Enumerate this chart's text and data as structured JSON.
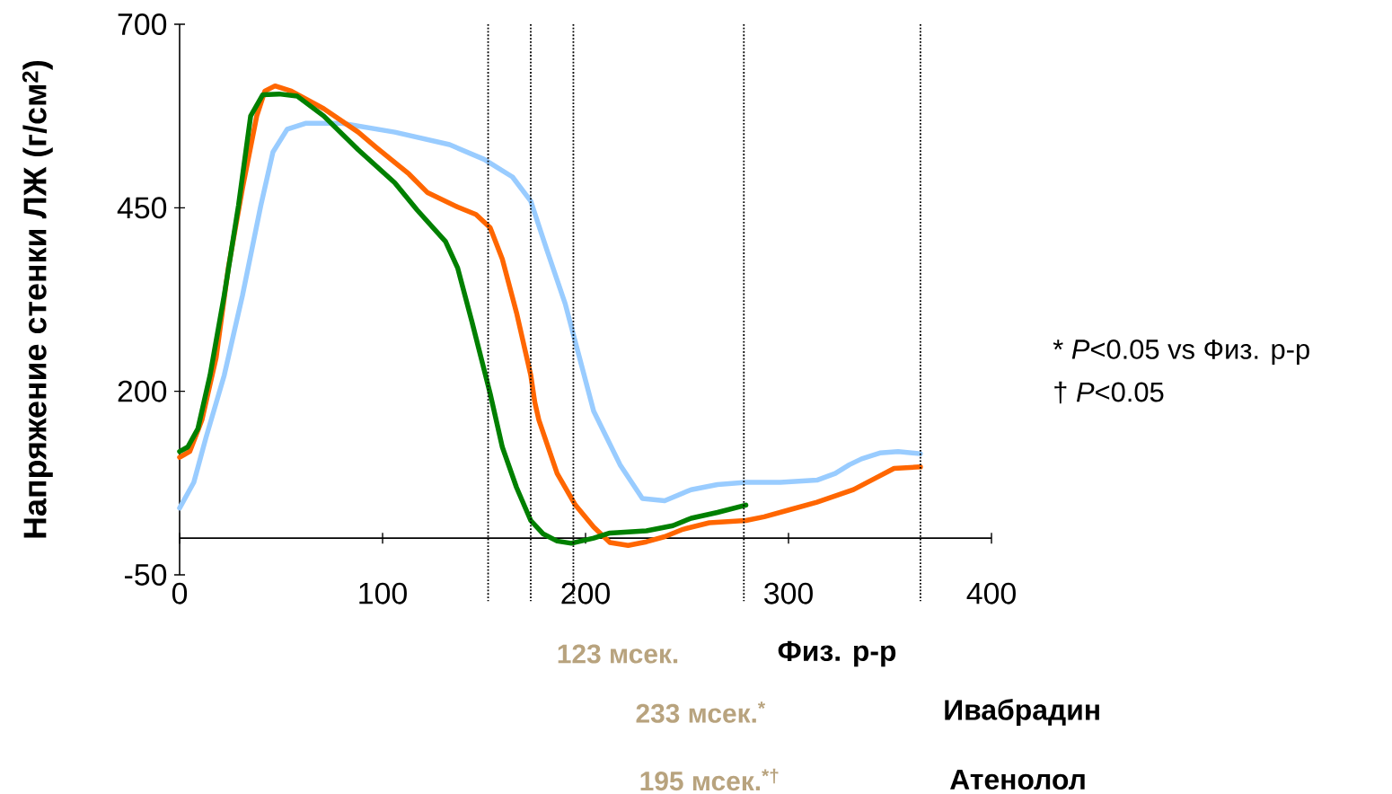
{
  "chart_data": {
    "type": "line",
    "ylabel": "Напряжение стенки ЛЖ (г/см$^{2}$)",
    "xlim": [
      0,
      400
    ],
    "xticks": [
      0,
      100,
      200,
      300,
      400
    ],
    "ylim": [
      -50,
      700
    ],
    "yticks": [
      -50,
      200,
      450,
      700
    ],
    "marker": "none",
    "line_style": "solid",
    "series": [
      {
        "color": "#99ccff",
        "x": [
          0,
          7,
          13,
          22,
          31,
          40,
          46,
          53,
          62,
          80,
          106,
          133,
          150,
          164,
          173,
          181,
          190,
          197,
          204,
          217,
          228,
          239,
          252,
          265,
          279,
          296,
          314,
          323,
          330,
          336,
          345,
          354,
          365
        ],
        "values": [
          41,
          76,
          137,
          222,
          331,
          453,
          526,
          557,
          565,
          565,
          553,
          536,
          516,
          492,
          459,
          392,
          319,
          246,
          173,
          100,
          54,
          51,
          66,
          73,
          76,
          76,
          79,
          88,
          100,
          108,
          116,
          118,
          115
        ]
      },
      {
        "color": "#ff6600",
        "x": [
          0,
          5,
          11,
          18,
          24,
          31,
          38,
          42,
          47,
          55,
          71,
          88,
          97,
          113,
          122,
          137,
          146,
          153,
          159,
          166,
          173,
          175,
          177,
          186,
          195,
          204,
          212,
          221,
          230,
          239,
          248,
          261,
          279,
          288,
          301,
          314,
          332,
          343,
          352,
          365
        ],
        "values": [
          110,
          118,
          161,
          246,
          368,
          477,
          575,
          609,
          616,
          609,
          585,
          553,
          532,
          496,
          471,
          451,
          441,
          423,
          380,
          307,
          222,
          185,
          161,
          88,
          45,
          15,
          -6,
          -10,
          -5,
          2,
          12,
          21,
          24,
          29,
          39,
          49,
          66,
          82,
          95,
          97
        ]
      },
      {
        "color": "#008000",
        "x": [
          0,
          4,
          9,
          15,
          22,
          29,
          35,
          41,
          49,
          58,
          71,
          88,
          106,
          117,
          131,
          137,
          144,
          153,
          159,
          166,
          173,
          179,
          186,
          193,
          204,
          212,
          230,
          243,
          252,
          265,
          279
        ],
        "values": [
          118,
          124,
          149,
          222,
          331,
          453,
          575,
          604,
          605,
          602,
          575,
          529,
          484,
          447,
          404,
          368,
          295,
          197,
          124,
          69,
          24,
          6,
          -4,
          -7,
          0,
          7,
          10,
          17,
          27,
          35,
          45
        ]
      }
    ],
    "ref_lines": [
      {
        "axis": "x",
        "value": 152,
        "line_style": "dotted"
      },
      {
        "axis": "x",
        "value": 173,
        "line_style": "dotted"
      },
      {
        "axis": "x",
        "value": 194,
        "line_style": "dotted"
      },
      {
        "axis": "x",
        "value": 278,
        "line_style": "dotted"
      },
      {
        "axis": "x",
        "value": 365,
        "line_style": "dotted"
      }
    ],
    "annotations": [
      "123 мсек.",
      "Физ. р-р",
      "233 мсек.$^{*}$",
      "Ивабрадин",
      "195 мсек.$^{*†}$",
      "Атенолол",
      "* *P*<0.05 vs Физ. р-р",
      "† *P*<0.05"
    ]
  }
}
